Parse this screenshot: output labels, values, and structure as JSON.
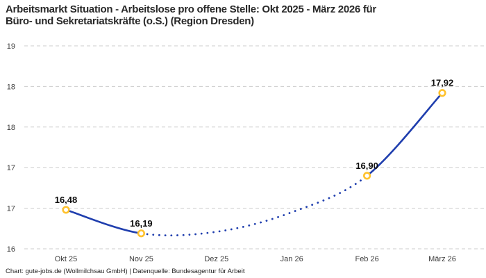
{
  "title": {
    "lines": [
      "Arbeitsmarkt Situation - Arbeitslose pro offene Stelle: Okt 2025 - März 2026 für",
      "Büro- und Sekretariatskräfte (o.S.) (Region Dresden)"
    ]
  },
  "footer": {
    "text": "Chart: gute-jobs.de (Wollmilchsau GmbH) | Datenquelle: Bundesagentur für Arbeit"
  },
  "chart_data": {
    "type": "line",
    "title": "Arbeitsmarkt Situation - Arbeitslose pro offene Stelle: Okt 2025 - März 2026 für Büro- und Sekretariatskräfte (o.S.) (Region Dresden)",
    "categories": [
      "Okt 25",
      "Nov 25",
      "Dez 25",
      "Jan 26",
      "Feb 26",
      "März 26"
    ],
    "series": [
      {
        "name": "Arbeitslose pro offene Stelle",
        "values": [
          16.48,
          16.19,
          null,
          null,
          16.9,
          17.92
        ],
        "value_labels": [
          "16,48",
          "16,19",
          null,
          null,
          "16,90",
          "17,92"
        ],
        "estimated_curve_values": [
          {
            "category_index": 2,
            "value": 16.21
          },
          {
            "category_index": 3,
            "value": 16.45
          }
        ],
        "segment_styles": [
          {
            "from": 0,
            "to": 1,
            "style": "solid"
          },
          {
            "from": 1,
            "to": 4,
            "style": "dotted"
          },
          {
            "from": 4,
            "to": 5,
            "style": "solid"
          }
        ]
      }
    ],
    "y_axis": {
      "range": [
        16.0,
        18.5
      ],
      "ticks": [
        {
          "value": 18.5,
          "label": "19"
        },
        {
          "value": 18.0,
          "label": "18"
        },
        {
          "value": 17.5,
          "label": "18"
        },
        {
          "value": 17.0,
          "label": "17"
        },
        {
          "value": 16.5,
          "label": "17"
        },
        {
          "value": 16.0,
          "label": "16"
        }
      ]
    },
    "grid": true,
    "legend": false,
    "colors": {
      "line": "#1f3eae",
      "marker_ring": "#ffc22e",
      "marker_fill": "#ffffff",
      "gridline": "#cccccc",
      "axis_label": "#3d3d3d",
      "data_label": "#0d0d0d"
    }
  }
}
